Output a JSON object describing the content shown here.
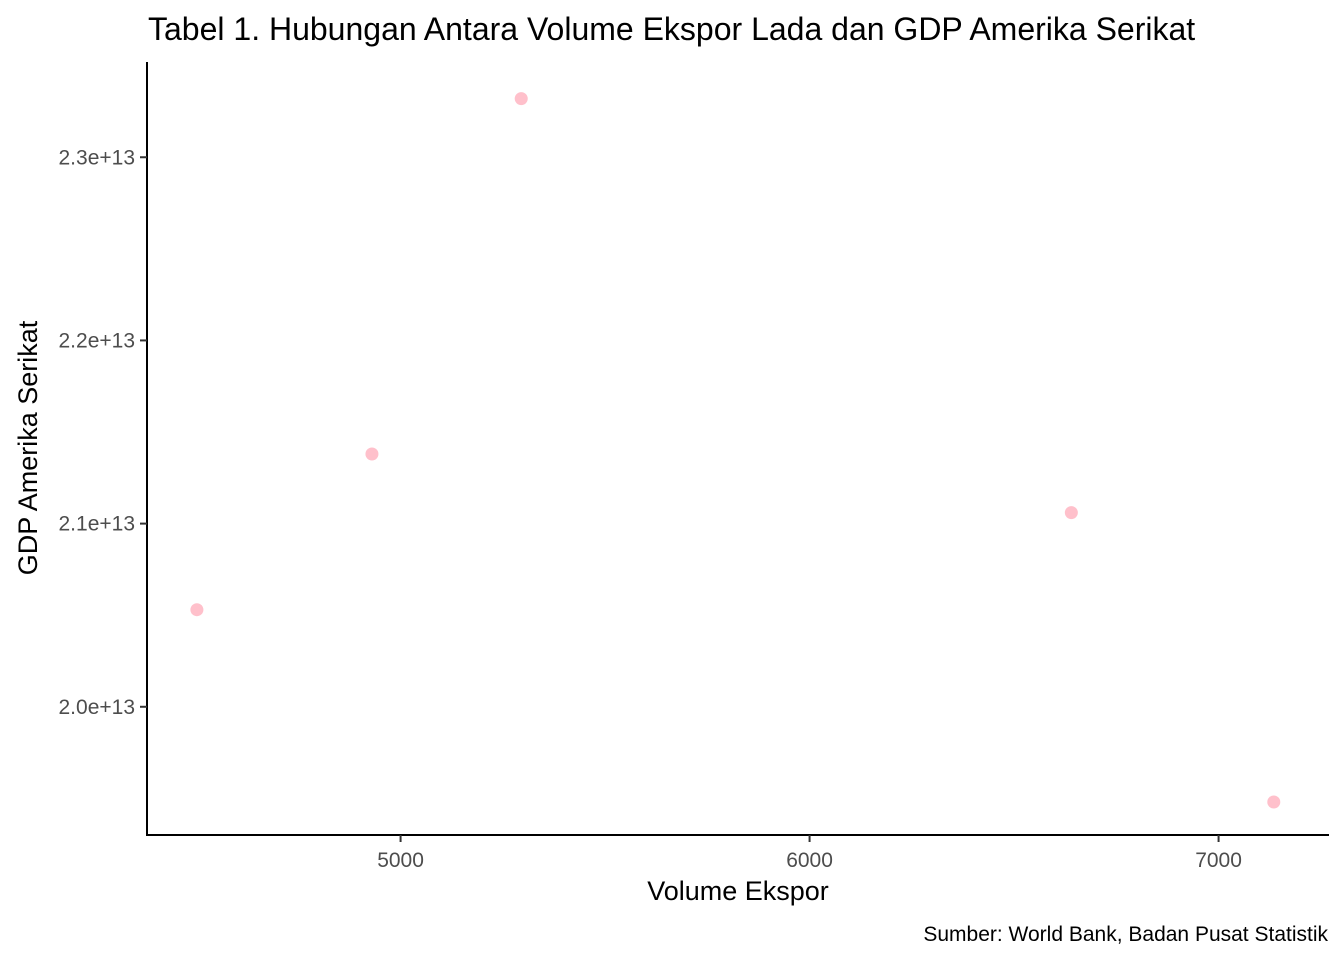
{
  "chart_data": {
    "type": "scatter",
    "title": "Tabel 1. Hubungan Antara Volume Ekspor Lada dan GDP Amerika Serikat",
    "xlabel": "Volume Ekspor",
    "ylabel": "GDP Amerika Serikat",
    "caption": "Sumber: World Bank, Badan Pusat Statistik",
    "xlim": [
      4380,
      7270
    ],
    "ylim": [
      19300000000000.0,
      23520000000000.0
    ],
    "x_ticks": [
      {
        "value": 5000,
        "label": "5000"
      },
      {
        "value": 6000,
        "label": "6000"
      },
      {
        "value": 7000,
        "label": "7000"
      }
    ],
    "y_ticks": [
      {
        "value": 20000000000000.0,
        "label": "2.0e+13"
      },
      {
        "value": 21000000000000.0,
        "label": "2.1e+13"
      },
      {
        "value": 22000000000000.0,
        "label": "2.2e+13"
      },
      {
        "value": 23000000000000.0,
        "label": "2.3e+13"
      }
    ],
    "grid": false,
    "point_color": "#ffc0cb",
    "points": [
      {
        "x": 4502,
        "y": 20530000000000.0
      },
      {
        "x": 4930,
        "y": 21380000000000.0
      },
      {
        "x": 5295,
        "y": 23320000000000.0
      },
      {
        "x": 6640,
        "y": 21060000000000.0
      },
      {
        "x": 7135,
        "y": 19480000000000.0
      }
    ]
  }
}
